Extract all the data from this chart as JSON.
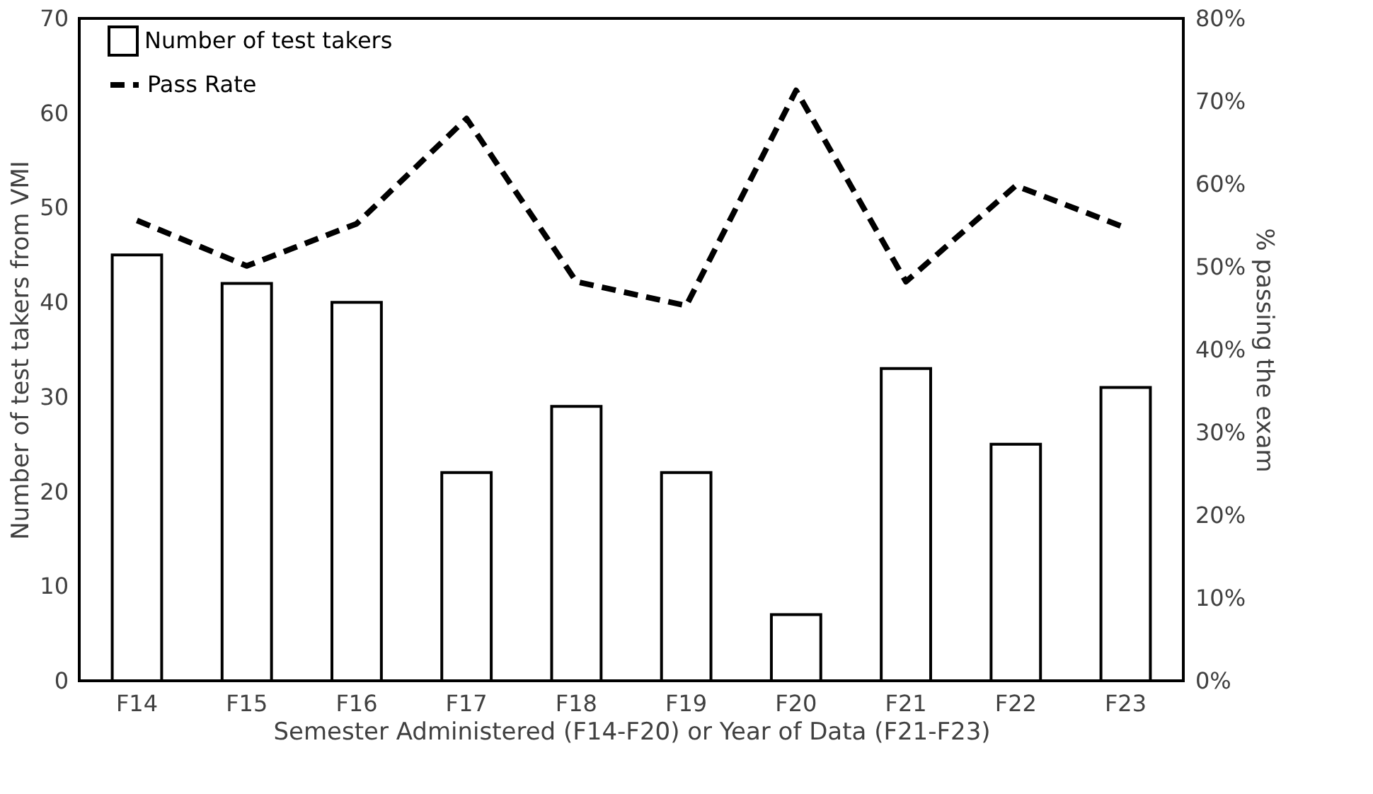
{
  "chart_data": {
    "type": "bar",
    "categories": [
      "F14",
      "F15",
      "F16",
      "F17",
      "F18",
      "F19",
      "F20",
      "F21",
      "F22",
      "F23"
    ],
    "series": [
      {
        "name": "Number of test takers",
        "color": "#ffffff",
        "values": [
          45,
          42,
          40,
          22,
          29,
          22,
          7,
          33,
          25,
          31
        ]
      },
      {
        "name": "Pass Rate",
        "type": "line",
        "axis": "y2",
        "color": "#000000",
        "line_style": "dashed",
        "values": [
          55.6,
          50.1,
          55.2,
          67.9,
          48.2,
          45.3,
          71.3,
          48.2,
          59.8,
          54.7
        ]
      }
    ],
    "xlabel": "Semester Administered (F14-F20) or Year of Data (F21-F23)",
    "ylabel": "Number of test takers from VMI",
    "y2label": "% passing the exam",
    "ylim": [
      0,
      70
    ],
    "yticks": [
      0,
      10,
      20,
      30,
      40,
      50,
      60,
      70
    ],
    "y2lim": [
      0,
      80
    ],
    "y2ticks": [
      {
        "value": 0,
        "label": "0%"
      },
      {
        "value": 10,
        "label": "10%"
      },
      {
        "value": 20,
        "label": "20%"
      },
      {
        "value": 30,
        "label": "30%"
      },
      {
        "value": 40,
        "label": "40%"
      },
      {
        "value": 50,
        "label": "50%"
      },
      {
        "value": 60,
        "label": "60%"
      },
      {
        "value": 70,
        "label": "70%"
      },
      {
        "value": 80,
        "label": "80%"
      }
    ],
    "grid": false,
    "legend": "top left"
  }
}
